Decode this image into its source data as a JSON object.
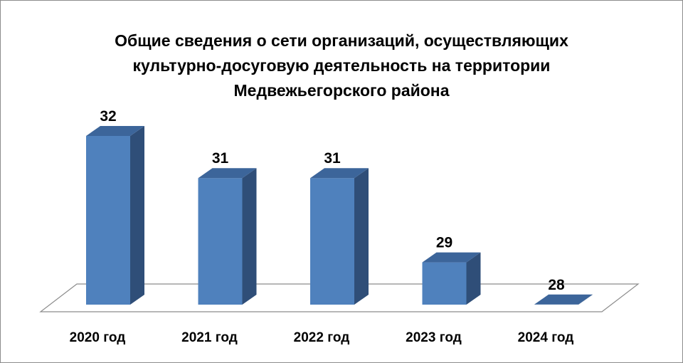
{
  "chart_data": {
    "type": "bar",
    "title_lines": [
      "Общие сведения о сети организаций, осуществляющих",
      "культурно-досуговую деятельность на территории",
      "Медвежьегорского района"
    ],
    "categories": [
      "2020 год",
      "2021 год",
      "2022 год",
      "2023 год",
      "2024 год"
    ],
    "values": [
      32,
      31,
      31,
      29,
      28
    ],
    "data_labels": [
      "32",
      "31",
      "31",
      "29",
      "28"
    ],
    "style": "3d-column",
    "grid": false,
    "legend": "none",
    "colors": {
      "bar_front": "#4f81bd",
      "bar_side": "#2f4e78",
      "bar_top": "#3c659a",
      "floor_stroke": "#8c8c8c",
      "frame": "#8c8c8c"
    }
  }
}
